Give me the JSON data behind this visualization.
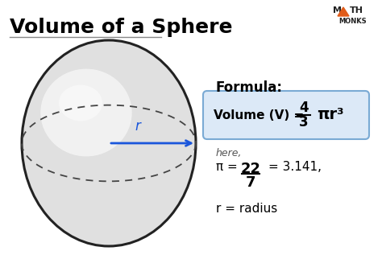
{
  "title": "Volume of a Sphere",
  "bg_color": "#ffffff",
  "title_color": "#000000",
  "title_fontsize": 18,
  "formula_label": "Formula:",
  "formula_box_color": "#dce9f7",
  "formula_box_edge": "#7aaad4",
  "here_text": "here,",
  "pi_line_num": "22",
  "pi_line_den": "7",
  "pi_line_val": "= 3.141,",
  "r_line": "r = radius",
  "sphere_line_color": "#222222",
  "sphere_dashed_color": "#444444",
  "radius_line_color": "#1a56db",
  "radius_label": "r",
  "mathmonks_color": "#222222",
  "mathmonks_triangle_color": "#e05c1a",
  "formula_fraction_num": "4",
  "formula_fraction_den": "3"
}
